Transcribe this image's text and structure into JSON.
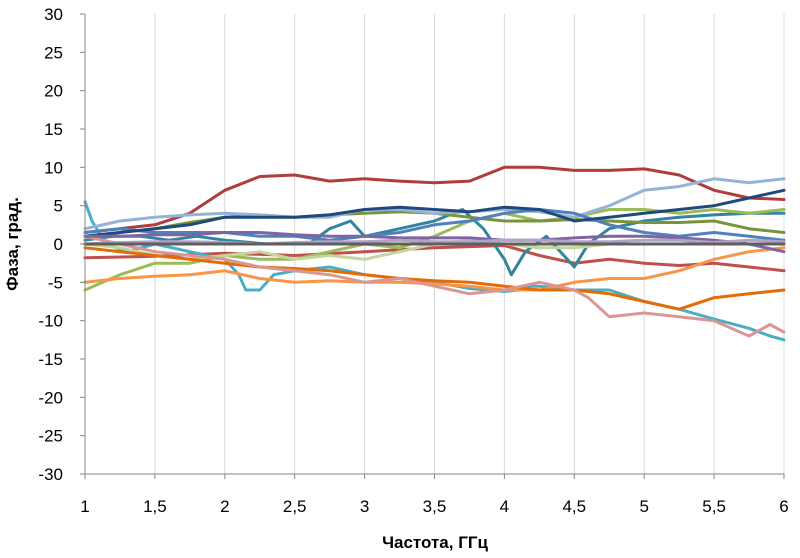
{
  "chart_data": {
    "type": "line",
    "title": "",
    "xlabel": "Частота, ГГц",
    "ylabel": "Фаза, град.",
    "xlim": [
      1,
      6
    ],
    "ylim": [
      -30,
      30
    ],
    "x_ticks": [
      "1",
      "1,5",
      "2",
      "2,5",
      "3",
      "3,5",
      "4",
      "4,5",
      "5",
      "5,5",
      "6"
    ],
    "y_ticks": [
      "30",
      "25",
      "20",
      "15",
      "10",
      "5",
      "0",
      "-5",
      "-10",
      "-15",
      "-20",
      "-25",
      "-30"
    ],
    "grid": "vertical",
    "legend": "none",
    "series": [
      {
        "color": "#b03c3c",
        "x": [
          1,
          1.25,
          1.5,
          1.75,
          2,
          2.25,
          2.5,
          2.75,
          3,
          3.25,
          3.5,
          3.75,
          4,
          4.25,
          4.5,
          4.75,
          5,
          5.25,
          5.5,
          5.75,
          6
        ],
        "y": [
          1.5,
          2,
          2.5,
          4,
          7,
          8.8,
          9,
          8.2,
          8.5,
          8.2,
          8,
          8.2,
          10,
          10,
          9.6,
          9.6,
          9.8,
          9,
          7,
          6,
          5.8
        ]
      },
      {
        "color": "#c0504d",
        "x": [
          1,
          1.5,
          2,
          2.5,
          3,
          3.5,
          4,
          4.25,
          4.5,
          4.75,
          5,
          5.25,
          5.5,
          5.75,
          6
        ],
        "y": [
          -1.8,
          -1.6,
          -1.2,
          -1.5,
          -1,
          -0.5,
          -0.2,
          -1.5,
          -2.5,
          -2,
          -2.5,
          -2.8,
          -2.5,
          -3,
          -3.5
        ]
      },
      {
        "color": "#4bacc6",
        "x": [
          1,
          1.05,
          1.15,
          1.3,
          1.5,
          1.75,
          2,
          2.1,
          2.15,
          2.25,
          2.35,
          2.5,
          2.75,
          3,
          3.25,
          3.5,
          3.6,
          3.75,
          4,
          4.1,
          4.15,
          4.25,
          4.5,
          4.75,
          5,
          5.25,
          5.5,
          5.75,
          5.9,
          6
        ],
        "y": [
          5.5,
          3,
          0,
          -1,
          0,
          -1,
          -2,
          -4,
          -6,
          -6,
          -4,
          -3.5,
          -3,
          -4,
          -4.5,
          -5,
          -5.3,
          -5.8,
          -6.2,
          -6,
          -5.5,
          -5.5,
          -6,
          -6,
          -7.5,
          -8.5,
          -9.8,
          -11,
          -12,
          -12.5
        ]
      },
      {
        "color": "#31859c",
        "x": [
          1,
          1.2,
          1.4,
          1.6,
          1.8,
          2,
          2.3,
          2.6,
          2.75,
          2.9,
          3,
          3.25,
          3.5,
          3.7,
          3.85,
          4,
          4.05,
          4.15,
          4.3,
          4.45,
          4.5,
          4.6,
          4.75,
          5,
          5.25,
          5.5,
          5.75,
          6
        ],
        "y": [
          0.5,
          1,
          1,
          0.5,
          1,
          0.5,
          0,
          0,
          2,
          3,
          1,
          2,
          3,
          4.5,
          2,
          -2,
          -4,
          -1,
          1,
          -2,
          -3,
          0,
          2,
          3,
          3.5,
          3.8,
          4,
          4
        ]
      },
      {
        "color": "#9bbb59",
        "x": [
          1,
          1.25,
          1.5,
          1.75,
          2,
          2.25,
          2.5,
          2.75,
          3,
          3.25,
          3.5,
          3.75,
          4,
          4.25,
          4.5,
          4.75,
          5,
          5.25,
          5.5,
          5.75,
          6
        ],
        "y": [
          -6,
          -4,
          -2.5,
          -2.5,
          -1.5,
          -2,
          -2,
          -1,
          0,
          -0.5,
          1,
          3,
          4,
          3,
          3.5,
          4.5,
          4.5,
          4,
          4.5,
          4,
          4.5
        ]
      },
      {
        "color": "#c3d69b",
        "x": [
          1,
          1.25,
          1.5,
          1.75,
          2,
          2.25,
          2.5,
          2.75,
          3,
          3.25,
          3.5,
          3.75,
          4,
          4.25,
          4.5,
          4.75,
          5,
          5.25,
          5.5,
          5.75,
          6
        ],
        "y": [
          0,
          -0.5,
          -1.5,
          -2,
          -1.5,
          -1,
          -2,
          -1.5,
          -2,
          -1,
          0,
          0.5,
          0,
          -0.5,
          -0.5,
          0,
          0,
          0,
          0,
          0,
          0
        ]
      },
      {
        "color": "#77933c",
        "x": [
          1,
          1.25,
          1.5,
          1.75,
          2,
          2.25,
          2.5,
          2.75,
          3,
          3.25,
          3.5,
          3.75,
          4,
          4.25,
          4.5,
          4.75,
          5,
          5.25,
          5.5,
          5.75,
          6
        ],
        "y": [
          1,
          1.5,
          2,
          2.8,
          3.5,
          3.8,
          3.5,
          3.8,
          4,
          4.2,
          4,
          3.5,
          3,
          3,
          3.2,
          3,
          2.8,
          2.8,
          3,
          2,
          1.5
        ]
      },
      {
        "color": "#f79646",
        "x": [
          1,
          1.25,
          1.5,
          1.75,
          2,
          2.25,
          2.5,
          2.75,
          3,
          3.25,
          3.5,
          3.75,
          4,
          4.25,
          4.5,
          4.75,
          5,
          5.25,
          5.5,
          5.75,
          6
        ],
        "y": [
          -5,
          -4.5,
          -4.2,
          -4,
          -3.5,
          -4.5,
          -5,
          -4.8,
          -5,
          -5,
          -5.2,
          -5.5,
          -6,
          -6,
          -5,
          -4.5,
          -4.5,
          -3.5,
          -2,
          -1,
          -0.5
        ]
      },
      {
        "color": "#e36c09",
        "x": [
          1,
          1.25,
          1.5,
          1.75,
          2,
          2.25,
          2.5,
          2.75,
          3,
          3.25,
          3.5,
          3.75,
          4,
          4.25,
          4.5,
          4.75,
          5,
          5.25,
          5.5,
          5.75,
          6
        ],
        "y": [
          -0.5,
          -1,
          -1.5,
          -2,
          -2.5,
          -3,
          -3.2,
          -3.5,
          -4,
          -4.5,
          -4.8,
          -5,
          -5.5,
          -6,
          -6,
          -6.5,
          -7.5,
          -8.5,
          -7,
          -6.5,
          -6
        ]
      },
      {
        "color": "#d99694",
        "x": [
          1,
          1.25,
          1.5,
          1.75,
          2,
          2.25,
          2.5,
          2.75,
          3,
          3.25,
          3.5,
          3.75,
          4,
          4.25,
          4.5,
          4.6,
          4.75,
          5,
          5.25,
          5.5,
          5.75,
          5.9,
          6
        ],
        "y": [
          1,
          0,
          -1,
          -1.5,
          -2,
          -3,
          -3.5,
          -4,
          -5,
          -4.5,
          -5.5,
          -6.5,
          -6,
          -5,
          -6,
          -7,
          -9.5,
          -9,
          -9.5,
          -10,
          -12,
          -10.5,
          -11.5
        ]
      },
      {
        "color": "#95b3d7",
        "x": [
          1,
          1.25,
          1.5,
          1.75,
          2,
          2.25,
          2.5,
          2.75,
          3,
          3.25,
          3.5,
          3.75,
          4,
          4.25,
          4.5,
          4.75,
          5,
          5.25,
          5.5,
          5.75,
          6
        ],
        "y": [
          2,
          3,
          3.5,
          3.8,
          4,
          3.8,
          3.5,
          3.5,
          4.5,
          4.5,
          4,
          4.2,
          4.5,
          4.2,
          3.5,
          5,
          7,
          7.5,
          8.5,
          8,
          8.5
        ]
      },
      {
        "color": "#4f81bd",
        "x": [
          1,
          1.25,
          1.5,
          1.75,
          2,
          2.25,
          2.5,
          2.75,
          3,
          3.25,
          3.5,
          3.75,
          4,
          4.25,
          4.5,
          4.75,
          5,
          5.25,
          5.5,
          5.75,
          6
        ],
        "y": [
          1.5,
          2,
          1.5,
          1.5,
          1.5,
          1,
          1,
          0.5,
          1,
          1.5,
          2.5,
          3,
          4,
          4.5,
          4,
          2.5,
          1.5,
          1,
          1.5,
          1,
          0.5
        ]
      },
      {
        "color": "#1f497d",
        "x": [
          1,
          1.25,
          1.5,
          1.75,
          2,
          2.25,
          2.5,
          2.75,
          3,
          3.25,
          3.5,
          3.75,
          4,
          4.25,
          4.5,
          4.75,
          5,
          5.25,
          5.5,
          5.75,
          6
        ],
        "y": [
          1,
          1.5,
          2,
          2.5,
          3.5,
          3.5,
          3.5,
          3.8,
          4.5,
          4.8,
          4.5,
          4.2,
          4.8,
          4.5,
          3,
          3.5,
          4,
          4.5,
          5,
          6,
          7
        ]
      },
      {
        "color": "#8064a2",
        "x": [
          1,
          1.25,
          1.5,
          1.75,
          2,
          2.25,
          2.5,
          2.75,
          3,
          3.25,
          3.5,
          3.75,
          4,
          4.25,
          4.5,
          4.75,
          5,
          5.25,
          5.5,
          5.75,
          6
        ],
        "y": [
          1,
          1,
          1.2,
          1.2,
          1.5,
          1.5,
          1.2,
          1,
          1,
          0.8,
          0.8,
          0.8,
          0.5,
          0.5,
          0.8,
          1,
          1,
          0.8,
          0.5,
          0,
          -1
        ]
      },
      {
        "color": "#b2a2c7",
        "x": [
          1,
          1.25,
          1.5,
          1.75,
          2,
          2.25,
          2.5,
          2.75,
          3,
          3.25,
          3.5,
          3.75,
          4,
          4.25,
          4.5,
          4.75,
          5,
          5.25,
          5.5,
          5.75,
          6
        ],
        "y": [
          0,
          0.2,
          0.3,
          0.3,
          0.2,
          0,
          0.2,
          0.3,
          0.3,
          0.5,
          0.3,
          0.3,
          0.5,
          0.5,
          0.3,
          0.3,
          0.5,
          0.5,
          0.2,
          0.5,
          0.3
        ]
      },
      {
        "color": "#5f5f5f",
        "x": [
          1,
          1.5,
          2,
          2.5,
          3,
          3.5,
          4,
          4.5,
          5,
          5.5,
          6
        ],
        "y": [
          0,
          0,
          0,
          0,
          0,
          0,
          0,
          0,
          0,
          0,
          0
        ]
      }
    ]
  }
}
